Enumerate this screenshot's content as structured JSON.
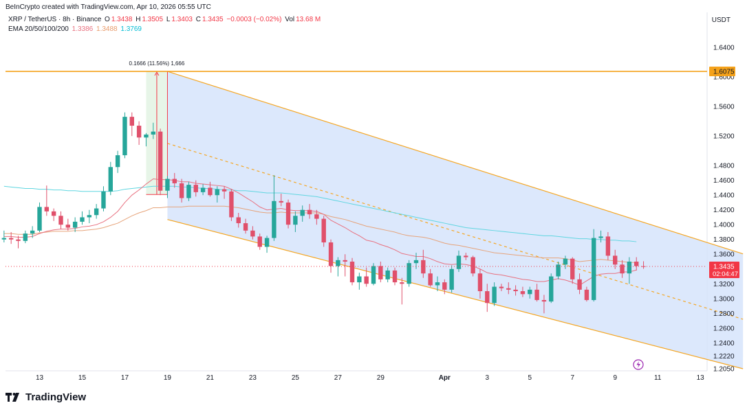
{
  "header": {
    "credit": "BeInCrypto created with TradingView.com, Apr 10, 2026 05:55 UTC",
    "symbol": "XRP / TetherUS · 8h · Binance",
    "o_label": "O",
    "o_value": "1.3438",
    "h_label": "H",
    "h_value": "1.3505",
    "l_label": "L",
    "l_value": "1.3403",
    "c_label": "C",
    "c_value": "1.3435",
    "change": "−0.0003 (−0.02%)",
    "vol_label": "Vol",
    "vol_value": "13.68 M",
    "ema_label": "EMA 20/50/100/200",
    "ema20": "1.3386",
    "ema50": "1.3488",
    "ema100": "1.3769"
  },
  "currency": "USDT",
  "footer": {
    "brand": "TradingView"
  },
  "colors": {
    "up": "#26a69a",
    "down": "#e0506b",
    "channel_fill": "#d6e4fb",
    "channel_line": "#f5a623",
    "resistance": "#f5a21b",
    "ema20": "#e8707f",
    "ema50": "#e6a37a",
    "ema200": "#5fd6e0",
    "price_tag": "#f23645",
    "resistance_tag": "#f5a21b"
  },
  "chart_data": {
    "type": "candlestick",
    "pair": "XRP / TetherUS",
    "timeframe": "8h",
    "exchange": "Binance",
    "ylim": [
      1.195,
      1.675
    ],
    "y_ticks": [
      "1.6400",
      "1.6000",
      "1.5600",
      "1.5200",
      "1.4800",
      "1.4600",
      "1.4400",
      "1.4200",
      "1.4000",
      "1.3800",
      "1.3600",
      "1.3200",
      "1.3000",
      "1.2800",
      "1.2600",
      "1.2400",
      "1.2220",
      "1.2050"
    ],
    "x_ticks": [
      {
        "label": "13",
        "t": 0
      },
      {
        "label": "15",
        "t": 6
      },
      {
        "label": "17",
        "t": 12
      },
      {
        "label": "19",
        "t": 18
      },
      {
        "label": "21",
        "t": 24
      },
      {
        "label": "23",
        "t": 30
      },
      {
        "label": "25",
        "t": 36
      },
      {
        "label": "27",
        "t": 42
      },
      {
        "label": "29",
        "t": 48
      },
      {
        "label": "Apr",
        "t": 57
      },
      {
        "label": "3",
        "t": 63
      },
      {
        "label": "5",
        "t": 69
      },
      {
        "label": "7",
        "t": 75
      },
      {
        "label": "9",
        "t": 81
      },
      {
        "label": "11",
        "t": 87
      },
      {
        "label": "13",
        "t": 93
      }
    ],
    "candles": [
      [
        1.38,
        1.392,
        1.376,
        1.382
      ],
      [
        1.382,
        1.39,
        1.374,
        1.38
      ],
      [
        1.38,
        1.385,
        1.368,
        1.378
      ],
      [
        1.378,
        1.392,
        1.375,
        1.388
      ],
      [
        1.388,
        1.398,
        1.382,
        1.392
      ],
      [
        1.392,
        1.43,
        1.39,
        1.424
      ],
      [
        1.424,
        1.453,
        1.412,
        1.418
      ],
      [
        1.418,
        1.422,
        1.405,
        1.412
      ],
      [
        1.412,
        1.418,
        1.394,
        1.4
      ],
      [
        1.4,
        1.408,
        1.392,
        1.396
      ],
      [
        1.396,
        1.41,
        1.39,
        1.404
      ],
      [
        1.404,
        1.418,
        1.4,
        1.41
      ],
      [
        1.41,
        1.42,
        1.402,
        1.413
      ],
      [
        1.413,
        1.428,
        1.408,
        1.422
      ],
      [
        1.422,
        1.452,
        1.418,
        1.445
      ],
      [
        1.445,
        1.485,
        1.44,
        1.478
      ],
      [
        1.478,
        1.5,
        1.47,
        1.494
      ],
      [
        1.494,
        1.552,
        1.49,
        1.546
      ],
      [
        1.546,
        1.552,
        1.52,
        1.534
      ],
      [
        1.534,
        1.54,
        1.508,
        1.518
      ],
      [
        1.518,
        1.524,
        1.506,
        1.522
      ],
      [
        1.522,
        1.538,
        1.516,
        1.526
      ],
      [
        1.526,
        1.53,
        1.44,
        1.446
      ],
      [
        1.446,
        1.466,
        1.436,
        1.462
      ],
      [
        1.462,
        1.47,
        1.45,
        1.456
      ],
      [
        1.456,
        1.462,
        1.43,
        1.436
      ],
      [
        1.436,
        1.458,
        1.432,
        1.454
      ],
      [
        1.454,
        1.46,
        1.438,
        1.444
      ],
      [
        1.444,
        1.455,
        1.44,
        1.45
      ],
      [
        1.45,
        1.458,
        1.438,
        1.44
      ],
      [
        1.44,
        1.452,
        1.43,
        1.448
      ],
      [
        1.448,
        1.452,
        1.435,
        1.445
      ],
      [
        1.445,
        1.448,
        1.405,
        1.41
      ],
      [
        1.41,
        1.416,
        1.396,
        1.402
      ],
      [
        1.402,
        1.408,
        1.388,
        1.392
      ],
      [
        1.392,
        1.398,
        1.38,
        1.384
      ],
      [
        1.384,
        1.388,
        1.366,
        1.37
      ],
      [
        1.37,
        1.385,
        1.362,
        1.382
      ],
      [
        1.382,
        1.467,
        1.378,
        1.432
      ],
      [
        1.432,
        1.442,
        1.425,
        1.43
      ],
      [
        1.43,
        1.434,
        1.395,
        1.4
      ],
      [
        1.4,
        1.418,
        1.39,
        1.412
      ],
      [
        1.412,
        1.426,
        1.404,
        1.42
      ],
      [
        1.42,
        1.428,
        1.408,
        1.414
      ],
      [
        1.414,
        1.42,
        1.4,
        1.408
      ],
      [
        1.408,
        1.412,
        1.37,
        1.376
      ],
      [
        1.376,
        1.38,
        1.335,
        1.344
      ],
      [
        1.344,
        1.356,
        1.33,
        1.352
      ],
      [
        1.352,
        1.36,
        1.33,
        1.35
      ]
    ],
    "candles_b": [
      [
        1.35,
        1.355,
        1.318,
        1.322
      ],
      [
        1.322,
        1.335,
        1.312,
        1.33
      ],
      [
        1.33,
        1.342,
        1.316,
        1.32
      ],
      [
        1.32,
        1.348,
        1.318,
        1.344
      ],
      [
        1.344,
        1.35,
        1.322,
        1.326
      ],
      [
        1.326,
        1.342,
        1.322,
        1.338
      ],
      [
        1.338,
        1.342,
        1.318,
        1.322
      ],
      [
        1.322,
        1.328,
        1.292,
        1.32
      ],
      [
        1.32,
        1.352,
        1.316,
        1.348
      ],
      [
        1.348,
        1.362,
        1.34,
        1.352
      ],
      [
        1.352,
        1.366,
        1.328,
        1.334
      ],
      [
        1.334,
        1.34,
        1.316,
        1.318
      ],
      [
        1.318,
        1.33,
        1.31,
        1.322
      ],
      [
        1.322,
        1.326,
        1.306,
        1.312
      ],
      [
        1.312,
        1.345,
        1.308,
        1.34
      ],
      [
        1.34,
        1.365,
        1.336,
        1.358
      ],
      [
        1.358,
        1.362,
        1.352,
        1.356
      ],
      [
        1.356,
        1.358,
        1.33,
        1.334
      ],
      [
        1.334,
        1.34,
        1.3,
        1.31
      ],
      [
        1.31,
        1.32,
        1.282,
        1.294
      ],
      [
        1.294,
        1.322,
        1.29,
        1.316
      ],
      [
        1.316,
        1.32,
        1.31,
        1.314
      ],
      [
        1.314,
        1.322,
        1.306,
        1.312
      ],
      [
        1.312,
        1.318,
        1.304,
        1.31
      ],
      [
        1.31,
        1.316,
        1.302,
        1.306
      ],
      [
        1.306,
        1.316,
        1.3,
        1.312
      ],
      [
        1.312,
        1.32,
        1.296,
        1.298
      ],
      [
        1.298,
        1.305,
        1.28,
        1.296
      ],
      [
        1.296,
        1.334,
        1.294,
        1.33
      ],
      [
        1.33,
        1.35,
        1.326,
        1.346
      ],
      [
        1.346,
        1.358,
        1.34,
        1.354
      ],
      [
        1.354,
        1.356,
        1.32,
        1.326
      ],
      [
        1.326,
        1.334,
        1.306,
        1.312
      ],
      [
        1.312,
        1.316,
        1.296,
        1.298
      ],
      [
        1.298,
        1.394,
        1.296,
        1.382
      ],
      [
        1.382,
        1.392,
        1.376,
        1.384
      ],
      [
        1.384,
        1.39,
        1.352,
        1.358
      ],
      [
        1.358,
        1.366,
        1.34,
        1.346
      ],
      [
        1.346,
        1.352,
        1.328,
        1.334
      ],
      [
        1.334,
        1.356,
        1.32,
        1.35
      ],
      [
        1.35,
        1.356,
        1.338,
        1.344
      ],
      [
        1.3438,
        1.3505,
        1.3403,
        1.3435
      ]
    ],
    "ema20": [
      1.384,
      1.384,
      1.383,
      1.383,
      1.384,
      1.388,
      1.391,
      1.393,
      1.394,
      1.394,
      1.395,
      1.397,
      1.398,
      1.4,
      1.404,
      1.41,
      1.418,
      1.43,
      1.44,
      1.447,
      1.455,
      1.462,
      1.461,
      1.461,
      1.46,
      1.458,
      1.458,
      1.456,
      1.455,
      1.454,
      1.453,
      1.452,
      1.448,
      1.443,
      1.437,
      1.431,
      1.424,
      1.42,
      1.421,
      1.422,
      1.42,
      1.419,
      1.419,
      1.419,
      1.418,
      1.414,
      1.406,
      1.401,
      1.396,
      1.39,
      1.385,
      1.379,
      1.377,
      1.373,
      1.37,
      1.366,
      1.361,
      1.359,
      1.357,
      1.357,
      1.354,
      1.35,
      1.347,
      1.346,
      1.347,
      1.346,
      1.344,
      1.34,
      1.335,
      1.333,
      1.332,
      1.33,
      1.328,
      1.326,
      1.325,
      1.323,
      1.323,
      1.325,
      1.327,
      1.325,
      1.322,
      1.318,
      1.324,
      1.33,
      1.333,
      1.334,
      1.334,
      1.336,
      1.336,
      1.3386
    ],
    "ema50": [
      1.388,
      1.388,
      1.387,
      1.387,
      1.387,
      1.389,
      1.39,
      1.391,
      1.391,
      1.391,
      1.392,
      1.392,
      1.393,
      1.394,
      1.396,
      1.399,
      1.402,
      1.407,
      1.412,
      1.416,
      1.419,
      1.423,
      1.423,
      1.424,
      1.424,
      1.424,
      1.425,
      1.425,
      1.425,
      1.425,
      1.425,
      1.425,
      1.424,
      1.423,
      1.421,
      1.419,
      1.417,
      1.416,
      1.416,
      1.417,
      1.416,
      1.416,
      1.416,
      1.416,
      1.416,
      1.414,
      1.411,
      1.409,
      1.407,
      1.404,
      1.401,
      1.398,
      1.396,
      1.394,
      1.392,
      1.39,
      1.387,
      1.385,
      1.384,
      1.383,
      1.381,
      1.378,
      1.375,
      1.373,
      1.372,
      1.37,
      1.368,
      1.366,
      1.364,
      1.362,
      1.361,
      1.36,
      1.359,
      1.358,
      1.357,
      1.356,
      1.355,
      1.355,
      1.355,
      1.354,
      1.352,
      1.35,
      1.351,
      1.352,
      1.353,
      1.352,
      1.351,
      1.35,
      1.349,
      1.3488
    ],
    "ema200": [
      1.452,
      1.451,
      1.45,
      1.449,
      1.449,
      1.448,
      1.448,
      1.447,
      1.447,
      1.446,
      1.446,
      1.445,
      1.445,
      1.445,
      1.445,
      1.445,
      1.446,
      1.448,
      1.449,
      1.45,
      1.451,
      1.452,
      1.452,
      1.452,
      1.452,
      1.451,
      1.451,
      1.45,
      1.449,
      1.449,
      1.448,
      1.447,
      1.447,
      1.446,
      1.446,
      1.445,
      1.444,
      1.443,
      1.443,
      1.443,
      1.442,
      1.441,
      1.44,
      1.439,
      1.438,
      1.436,
      1.434,
      1.432,
      1.43,
      1.428,
      1.426,
      1.424,
      1.422,
      1.42,
      1.418,
      1.416,
      1.414,
      1.412,
      1.41,
      1.408,
      1.406,
      1.404,
      1.402,
      1.4,
      1.398,
      1.396,
      1.395,
      1.394,
      1.393,
      1.392,
      1.391,
      1.39,
      1.389,
      1.388,
      1.387,
      1.386,
      1.385,
      1.385,
      1.384,
      1.383,
      1.382,
      1.381,
      1.381,
      1.38,
      1.38,
      1.379,
      1.379,
      1.378,
      1.378,
      1.3769
    ],
    "resistance": {
      "value": 1.6075,
      "label": "1.6075"
    },
    "current_price": {
      "value": 1.3435,
      "label": "1.3435",
      "countdown": "02:04:47"
    },
    "measure": {
      "label": "0.1666 (11.56%) 1,666",
      "from": 1.4409,
      "to": 1.6075,
      "t_start": 15,
      "t_end": 18
    },
    "channel": {
      "upper_start": {
        "t": 18,
        "y": 1.6075
      },
      "upper_end": {
        "t": 99,
        "y": 1.3605
      },
      "lower_start": {
        "t": 18,
        "y": 1.407
      },
      "lower_end": {
        "t": 99,
        "y": 1.205
      },
      "mid_start": {
        "t": 18,
        "y": 1.51
      },
      "mid_end": {
        "t": 99,
        "y": 1.272
      }
    }
  }
}
